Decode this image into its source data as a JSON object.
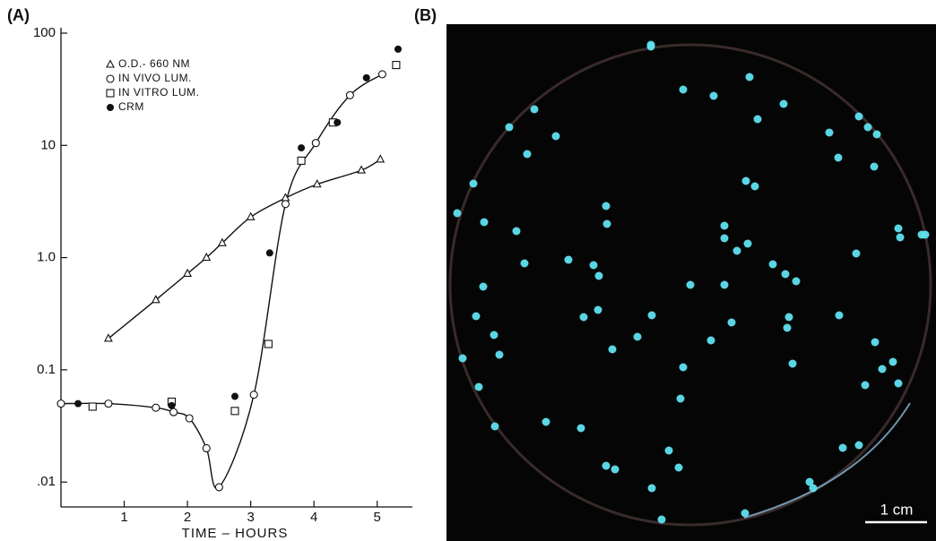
{
  "panel_labels": [
    "(A)",
    "(B)"
  ],
  "chart_data": {
    "type": "scatter",
    "xlabel": "TIME – HOURS",
    "xlim": [
      0,
      5.5
    ],
    "xticks": [
      1,
      2,
      3,
      4,
      5
    ],
    "ylim": [
      0.006,
      100
    ],
    "yticks": [
      100,
      10,
      {
        "value": 1,
        "label": "1.0"
      },
      0.1,
      {
        "value": 0.01,
        "label": ".01"
      }
    ],
    "y_scale": "log",
    "grid": false,
    "legend": "upper left",
    "series": [
      {
        "name": "O.D.- 660 NM",
        "marker": "triangle",
        "curve": true,
        "color": "#111111",
        "x": [
          0.75,
          1.5,
          2.0,
          2.3,
          2.55,
          3.0,
          3.55,
          4.05,
          4.75,
          5.05
        ],
        "values": [
          0.19,
          0.42,
          0.72,
          1.0,
          1.35,
          2.3,
          3.4,
          4.5,
          6.0,
          7.5
        ]
      },
      {
        "name": "IN VIVO LUM.",
        "marker": "circle",
        "curve": true,
        "color": "#111111",
        "x": [
          0,
          0.75,
          1.5,
          1.78,
          2.03,
          2.3,
          2.5,
          3.05,
          3.55,
          4.03,
          4.57,
          5.08
        ],
        "values": [
          0.05,
          0.05,
          0.046,
          0.042,
          0.037,
          0.02,
          0.009,
          0.06,
          3,
          10.5,
          28,
          43
        ]
      },
      {
        "name": "IN VITRO LUM.",
        "marker": "square",
        "curve": false,
        "color": "#111111",
        "x": [
          0.5,
          1.75,
          2.75,
          3.28,
          3.8,
          4.3,
          5.3
        ],
        "values": [
          0.047,
          0.052,
          0.043,
          0.17,
          7.3,
          16,
          52
        ]
      },
      {
        "name": "CRM",
        "marker": "filled-circle",
        "curve": false,
        "color": "#111111",
        "x": [
          0.27,
          1.75,
          2.75,
          3.3,
          3.8,
          4.37,
          4.83,
          5.33
        ],
        "values": [
          0.05,
          0.048,
          0.058,
          1.1,
          9.5,
          16,
          40,
          72
        ]
      }
    ]
  },
  "photo": {
    "scale_bar": "1 cm"
  }
}
